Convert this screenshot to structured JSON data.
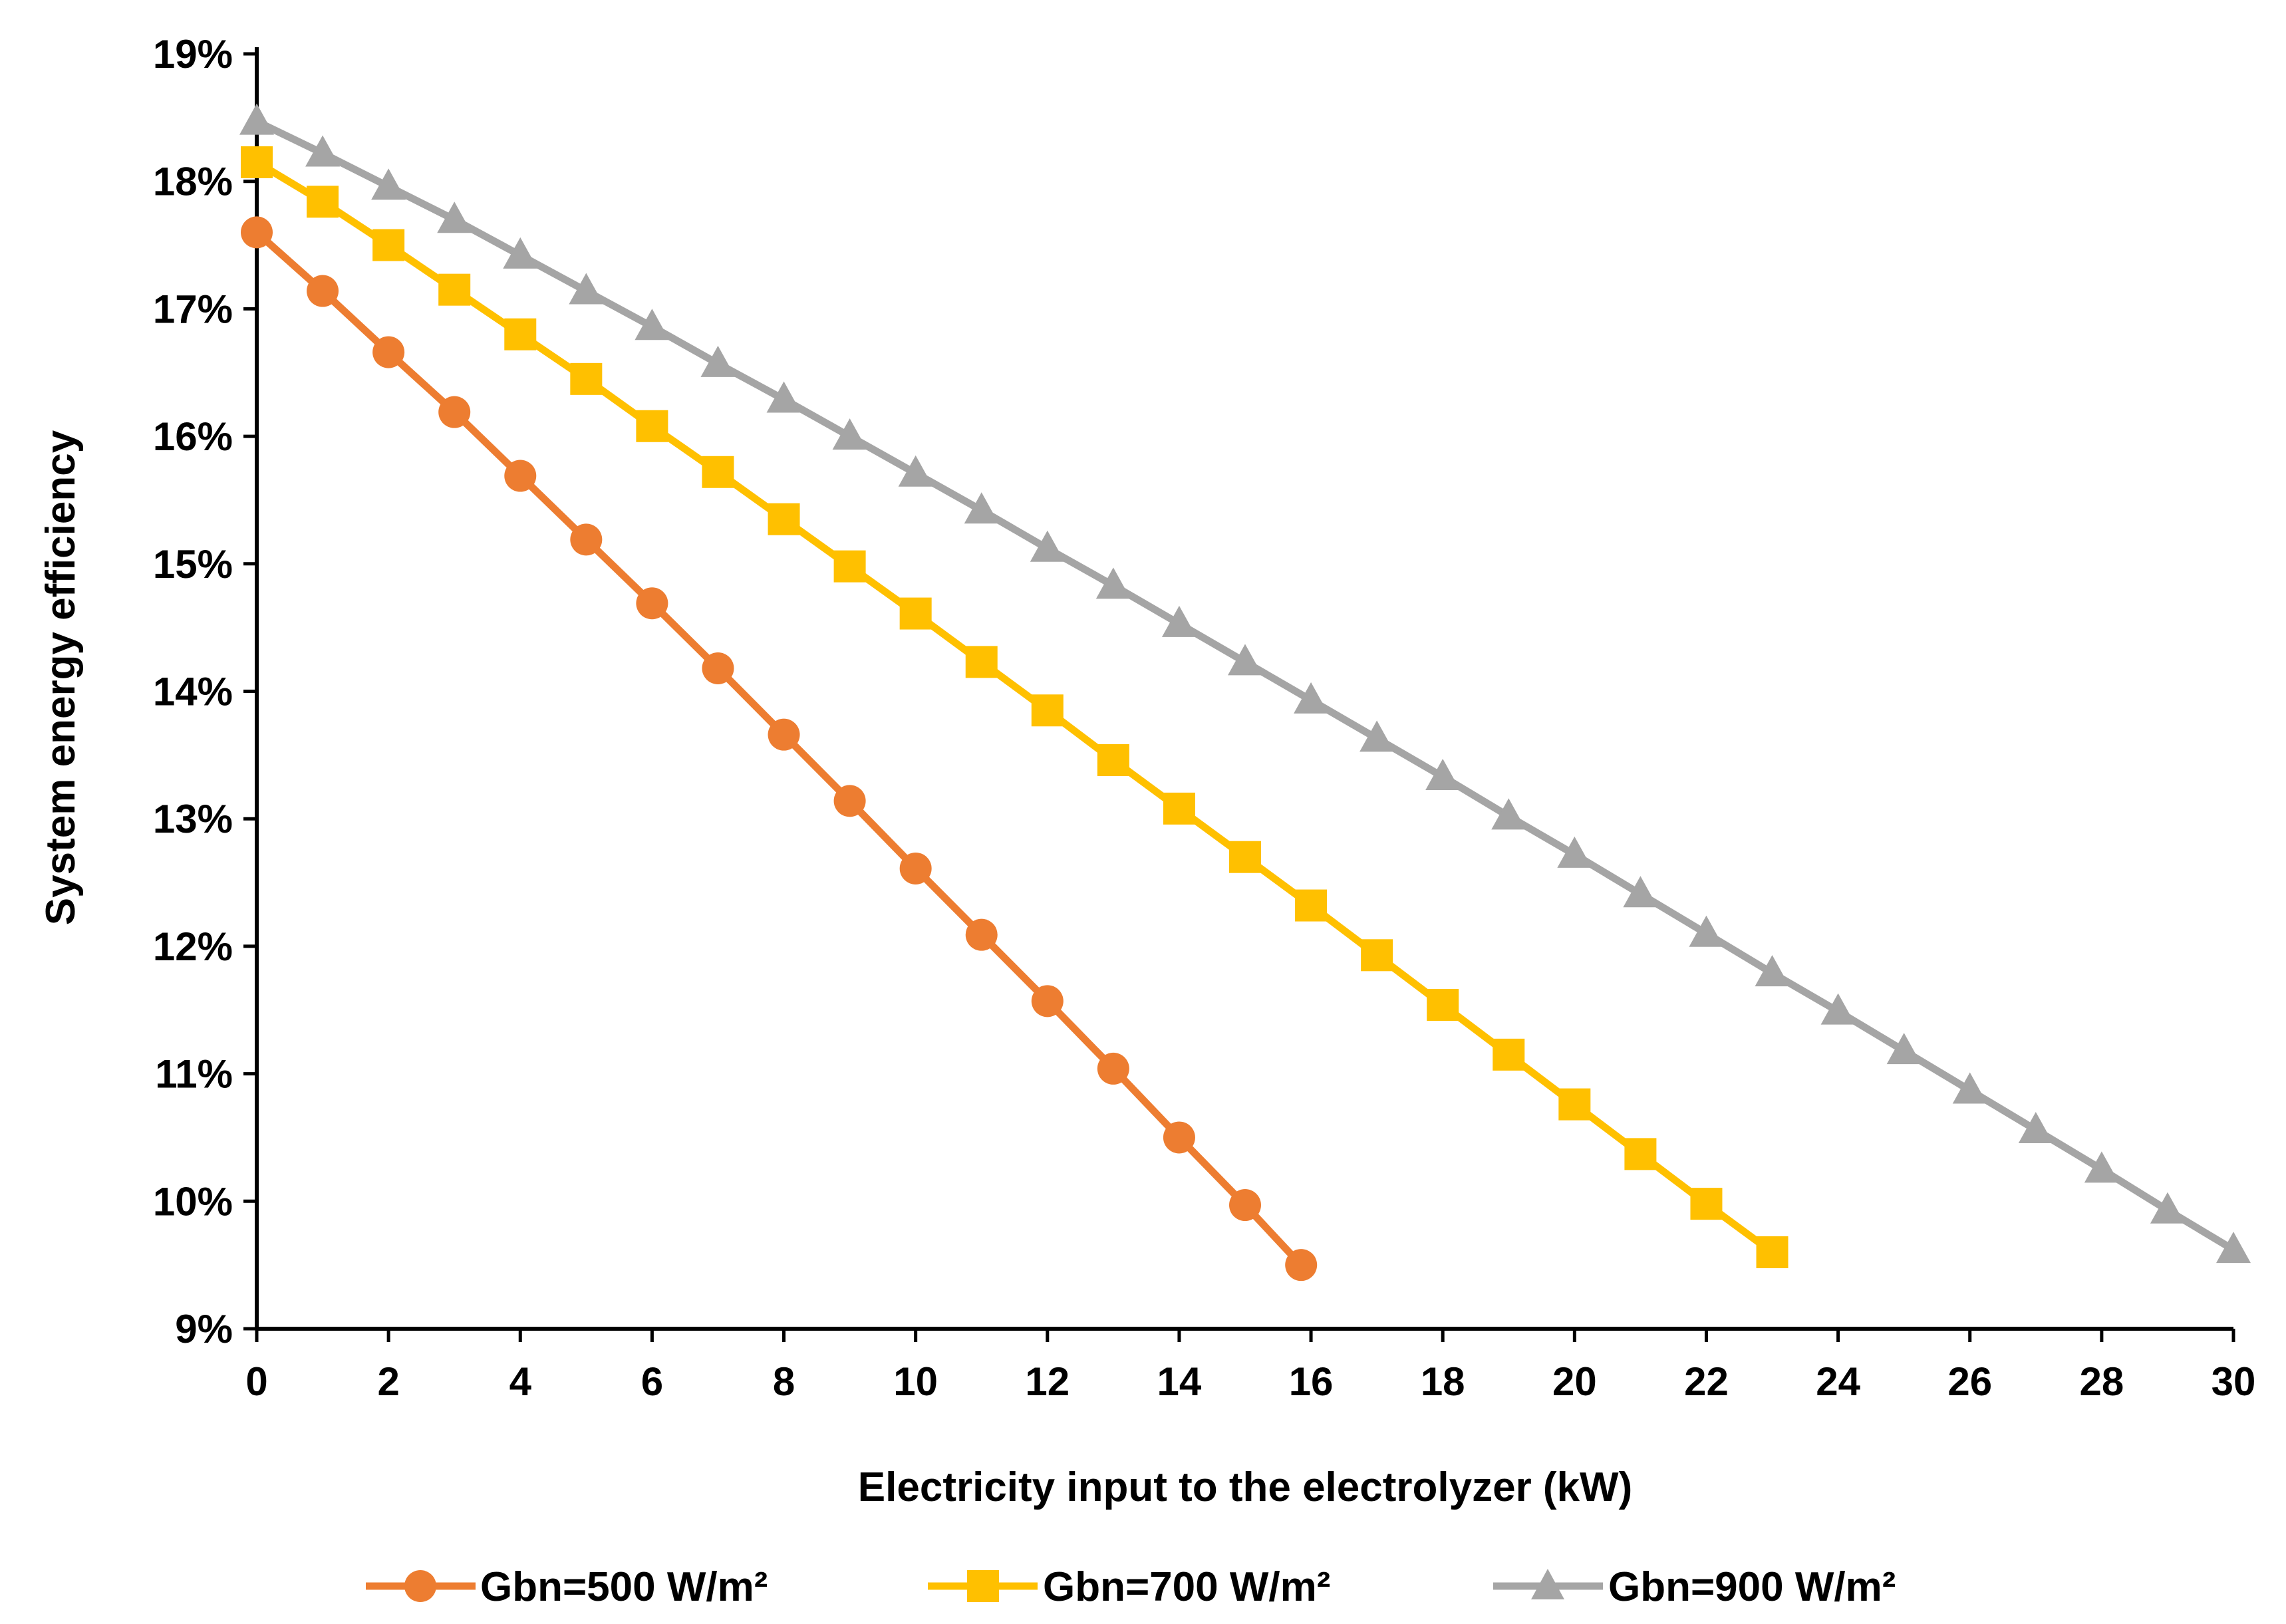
{
  "chart_data": {
    "type": "line",
    "title": "",
    "xlabel": "Electricity input to the electrolyzer (kW)",
    "ylabel": "System energy efficiency",
    "xlim": [
      0,
      30
    ],
    "ylim": [
      9,
      19
    ],
    "x_ticks": [
      0,
      2,
      4,
      6,
      8,
      10,
      12,
      14,
      16,
      18,
      20,
      22,
      24,
      26,
      28,
      30
    ],
    "x_tick_labels": [
      "0",
      "2",
      "4",
      "6",
      "8",
      "10",
      "12",
      "14",
      "16",
      "18",
      "20",
      "22",
      "24",
      "26",
      "28",
      "30"
    ],
    "y_ticks": [
      9,
      10,
      11,
      12,
      13,
      14,
      15,
      16,
      17,
      18,
      19
    ],
    "y_tick_labels": [
      "9%",
      "10%",
      "11%",
      "12%",
      "13%",
      "14%",
      "15%",
      "16%",
      "17%",
      "18%",
      "19%"
    ],
    "grid": false,
    "legend_position": "bottom",
    "series": [
      {
        "name": "Gbn=500 W/m²",
        "color": "#ED7D31",
        "marker": "circle",
        "x": [
          0,
          1,
          2,
          3,
          4,
          5,
          6,
          7,
          8,
          9,
          10,
          11,
          12,
          13,
          14,
          15,
          15.85
        ],
        "y": [
          17.6,
          17.14,
          16.66,
          16.19,
          15.69,
          15.19,
          14.69,
          14.18,
          13.66,
          13.14,
          12.61,
          12.09,
          11.57,
          11.04,
          10.5,
          9.97,
          9.5
        ]
      },
      {
        "name": "Gbn=700 W/m²",
        "color": "#FFC000",
        "marker": "square",
        "x": [
          0,
          1,
          2,
          3,
          4,
          5,
          6,
          7,
          8,
          9,
          10,
          11,
          12,
          13,
          14,
          15,
          16,
          17,
          18,
          19,
          20,
          21,
          22,
          23
        ],
        "y": [
          18.15,
          17.84,
          17.5,
          17.15,
          16.8,
          16.45,
          16.08,
          15.72,
          15.35,
          14.98,
          14.61,
          14.23,
          13.85,
          13.46,
          13.08,
          12.7,
          12.32,
          11.93,
          11.54,
          11.15,
          10.76,
          10.37,
          9.98,
          9.6
        ]
      },
      {
        "name": "Gbn=900 W/m²",
        "color": "#A5A5A5",
        "marker": "triangle",
        "x": [
          0,
          1,
          2,
          3,
          4,
          5,
          6,
          7,
          8,
          9,
          10,
          11,
          12,
          13,
          14,
          15,
          16,
          17,
          18,
          19,
          20,
          21,
          22,
          23,
          24,
          25,
          26,
          27,
          28,
          29,
          30
        ],
        "y": [
          18.47,
          18.22,
          17.96,
          17.7,
          17.42,
          17.14,
          16.86,
          16.57,
          16.29,
          16.0,
          15.71,
          15.42,
          15.12,
          14.83,
          14.53,
          14.23,
          13.93,
          13.63,
          13.33,
          13.02,
          12.72,
          12.41,
          12.1,
          11.79,
          11.49,
          11.18,
          10.87,
          10.56,
          10.25,
          9.93,
          9.62
        ]
      }
    ]
  }
}
